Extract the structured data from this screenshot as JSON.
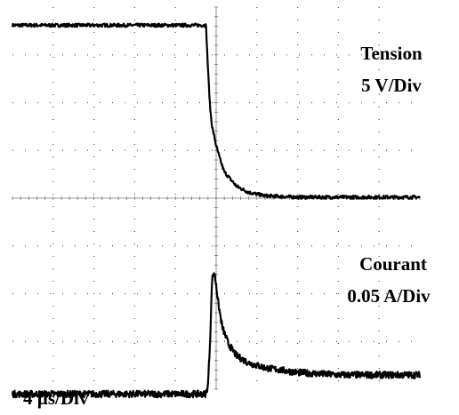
{
  "chart_data": {
    "type": "line",
    "title": "",
    "time_base": "4 µs/Div",
    "x_divisions": 10,
    "y_divisions": 8,
    "grid": "dotted",
    "colors": {
      "trace": "#000000",
      "grid": "#555555",
      "background": "#ffffff"
    },
    "series": [
      {
        "label": "Tension",
        "scale": "5 V/Div",
        "x_div": [
          0,
          1,
          2,
          3,
          4,
          4.75,
          4.8,
          4.85,
          4.9,
          5.0,
          5.1,
          5.2,
          5.35,
          5.5,
          5.8,
          6.2,
          7.0,
          8.0,
          9.0,
          10.0
        ],
        "y_div": [
          3.62,
          3.62,
          3.62,
          3.62,
          3.62,
          3.62,
          2.7,
          1.9,
          1.5,
          1.1,
          0.8,
          0.55,
          0.4,
          0.25,
          0.12,
          0.05,
          0.02,
          0.02,
          0.02,
          0.02
        ]
      },
      {
        "label": "Courant",
        "scale": "0.05 A/Div",
        "x_div": [
          0,
          1,
          2,
          3,
          4,
          4.75,
          4.8,
          4.85,
          4.9,
          4.95,
          5.0,
          5.05,
          5.15,
          5.3,
          5.5,
          5.8,
          6.2,
          7.0,
          8.0,
          9.0,
          10.0
        ],
        "y_div": [
          -4.1,
          -4.1,
          -4.1,
          -4.1,
          -4.1,
          -4.1,
          -3.9,
          -3.0,
          -1.7,
          -1.55,
          -1.8,
          -2.2,
          -2.7,
          -3.05,
          -3.3,
          -3.45,
          -3.55,
          -3.65,
          -3.7,
          -3.7,
          -3.7
        ]
      }
    ]
  }
}
